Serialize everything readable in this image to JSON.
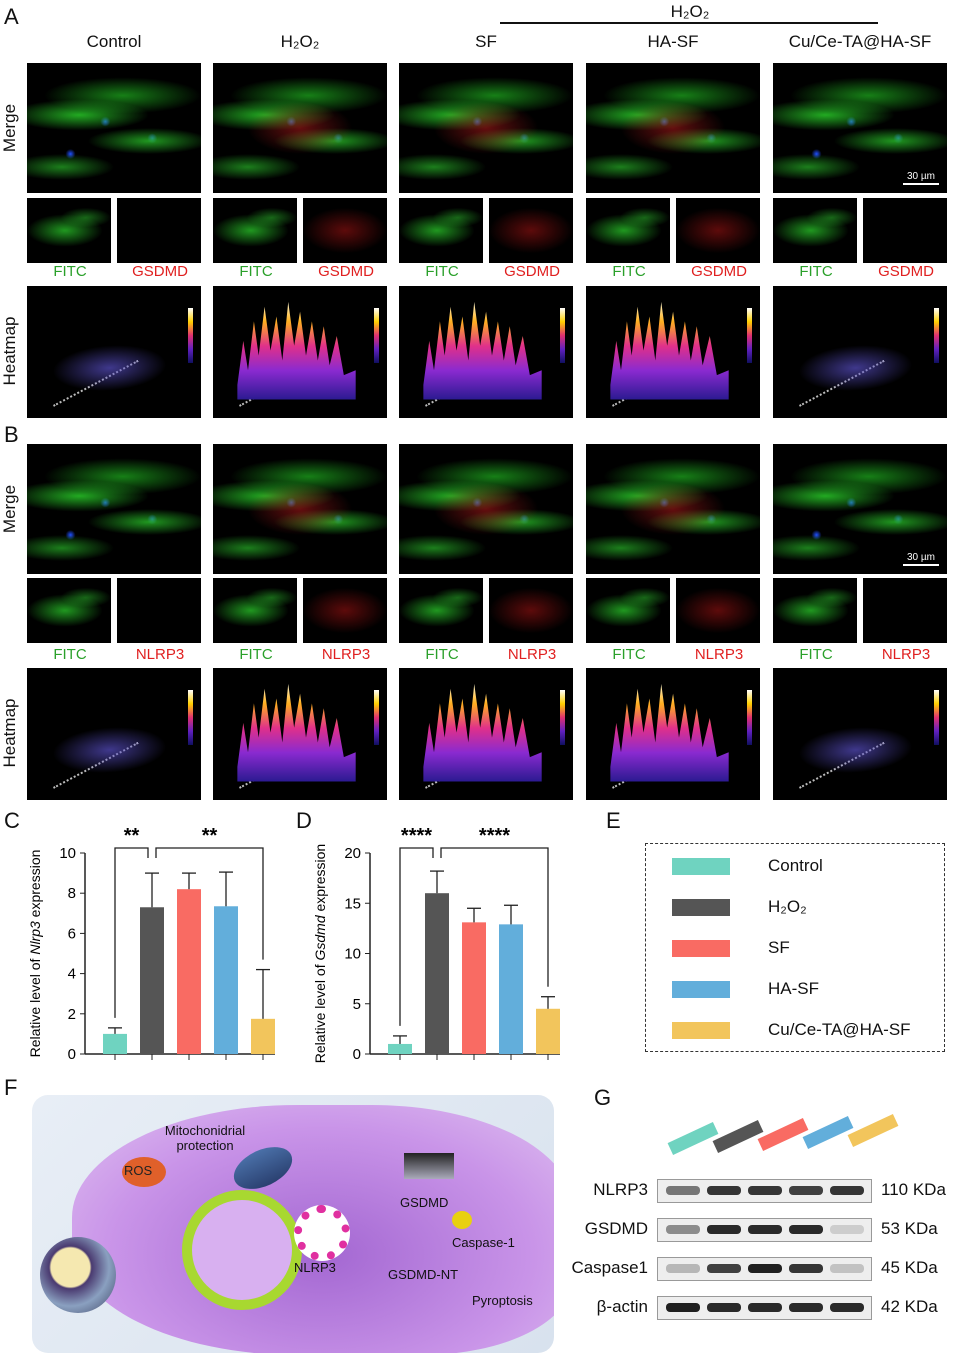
{
  "panel_labels": {
    "a": "A",
    "b": "B",
    "c": "C",
    "d": "D",
    "e": "E",
    "f": "F",
    "g": "G"
  },
  "treatment_header": "H₂O₂",
  "groups": [
    "Control",
    "H₂O₂",
    "SF",
    "HA-SF",
    "Cu/Ce-TA@HA-SF"
  ],
  "row_labels": {
    "merge": "Merge",
    "heatmap": "Heatmap"
  },
  "channel_labels": {
    "fitc": "FITC",
    "gsdmd": "GSDMD",
    "nlrp3": "NLRP3"
  },
  "scale_bar": "30 µm",
  "colors": {
    "Control": "#6fd3c0",
    "H2O2": "#555555",
    "SF": "#f96b63",
    "HA-SF": "#62aedb",
    "Cu/Ce-TA@HA-SF": "#f2c55c",
    "fitc": "#2aa02a",
    "red": "#e02020"
  },
  "chart_data": [
    {
      "type": "bar",
      "panel": "C",
      "ylabel_pre": "Relative level of ",
      "ylabel_gene": "Nlrp3",
      "ylabel_post": " expression",
      "ylim": [
        0,
        10
      ],
      "yticks": [
        0,
        2,
        4,
        6,
        8,
        10
      ],
      "categories": [
        "Control",
        "H₂O₂",
        "SF",
        "HA-SF",
        "Cu/Ce-TA@HA-SF"
      ],
      "values": [
        1.0,
        7.3,
        8.2,
        7.35,
        1.75
      ],
      "errors": [
        0.3,
        1.7,
        0.8,
        1.7,
        2.45
      ],
      "significance": [
        {
          "from": 0,
          "to": 1,
          "label": "**"
        },
        {
          "from": 1,
          "to": 4,
          "label": "**"
        }
      ]
    },
    {
      "type": "bar",
      "panel": "D",
      "ylabel_pre": "Relative level of ",
      "ylabel_gene": "Gsdmd",
      "ylabel_post": " expression",
      "ylim": [
        0,
        20
      ],
      "yticks": [
        0,
        5,
        10,
        15,
        20
      ],
      "categories": [
        "Control",
        "H₂O₂",
        "SF",
        "HA-SF",
        "Cu/Ce-TA@HA-SF"
      ],
      "values": [
        1.0,
        16.0,
        13.1,
        12.9,
        4.5
      ],
      "errors": [
        0.8,
        2.2,
        1.4,
        1.9,
        1.2
      ],
      "significance": [
        {
          "from": 0,
          "to": 1,
          "label": "****"
        },
        {
          "from": 1,
          "to": 4,
          "label": "****"
        }
      ]
    }
  ],
  "schematic": {
    "mito": "Mitochonidrial",
    "protection": "protection",
    "ros": "ROS",
    "nlrp3": "NLRP3",
    "gsdmd": "GSDMD",
    "caspase": "Caspase-1",
    "gsdmd_nt": "GSDMD-NT",
    "pyroptosis": "Pyroptosis"
  },
  "western_blot": {
    "rows": [
      {
        "protein": "NLRP3",
        "size": "110 KDa",
        "intensity": [
          0.55,
          0.85,
          0.85,
          0.8,
          0.85
        ]
      },
      {
        "protein": "GSDMD",
        "size": "53 KDa",
        "intensity": [
          0.45,
          0.9,
          0.9,
          0.9,
          0.15
        ]
      },
      {
        "protein": "Caspase1",
        "size": "45 KDa",
        "intensity": [
          0.25,
          0.8,
          0.95,
          0.85,
          0.2
        ]
      },
      {
        "protein": "β-actin",
        "size": "42 KDa",
        "intensity": [
          0.95,
          0.9,
          0.9,
          0.9,
          0.9
        ]
      }
    ]
  }
}
